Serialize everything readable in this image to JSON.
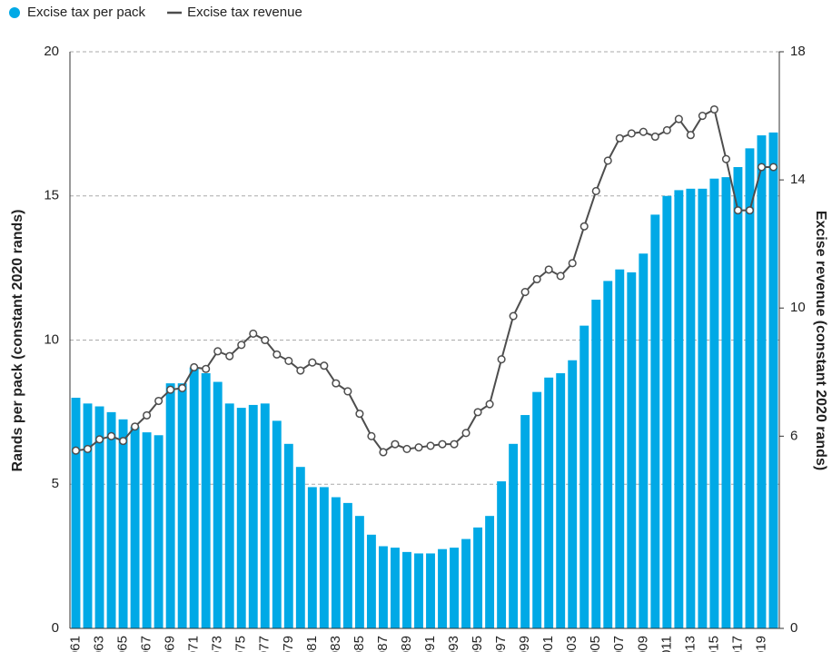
{
  "chart_data": {
    "type": "combo",
    "categories": [
      "1961",
      null,
      "1963",
      null,
      "1965",
      null,
      "1967",
      null,
      "1969",
      null,
      "1971",
      null,
      "1973",
      null,
      "1975",
      null,
      "1977",
      null,
      "1979",
      null,
      "1981",
      null,
      "1983",
      null,
      "1985",
      null,
      "1987",
      null,
      "1989",
      null,
      "1991",
      null,
      "1993",
      null,
      "1995",
      null,
      "1997",
      null,
      "1999",
      null,
      "2001",
      null,
      "2003",
      null,
      "2005",
      null,
      "2007",
      null,
      "2009",
      null,
      "2011",
      null,
      "2013",
      null,
      "2015",
      null,
      "2017",
      null,
      "2019",
      null
    ],
    "series": [
      {
        "name": "Excise tax per pack",
        "type": "bar",
        "color": "#00a9e6",
        "values": [
          8.0,
          7.8,
          7.7,
          7.5,
          7.25,
          7.0,
          6.8,
          6.7,
          8.5,
          8.5,
          9.05,
          8.85,
          8.55,
          7.8,
          7.65,
          7.75,
          7.8,
          7.2,
          6.4,
          5.6,
          4.9,
          4.9,
          4.55,
          4.35,
          3.9,
          3.25,
          2.85,
          2.8,
          2.65,
          2.6,
          2.6,
          2.75,
          2.8,
          3.1,
          3.5,
          3.9,
          5.1,
          6.4,
          7.4,
          8.2,
          8.7,
          8.85,
          9.3,
          10.5,
          11.4,
          12.05,
          12.45,
          12.35,
          13.0,
          14.35,
          15.0,
          15.2,
          15.25,
          15.25,
          15.6,
          15.65,
          16.0,
          16.65,
          17.1,
          17.2
        ]
      },
      {
        "name": "Excise tax revenue",
        "type": "line",
        "axis": "y2",
        "color": "#4d4d4d",
        "values": [
          5.55,
          5.6,
          5.9,
          6.0,
          5.85,
          6.3,
          6.65,
          7.1,
          7.45,
          7.5,
          8.15,
          8.1,
          8.65,
          8.5,
          8.85,
          9.2,
          9.0,
          8.55,
          8.35,
          8.05,
          8.3,
          8.2,
          7.65,
          7.4,
          6.7,
          6.0,
          5.5,
          5.75,
          5.6,
          5.65,
          5.7,
          5.75,
          5.75,
          6.1,
          6.75,
          7.0,
          8.4,
          9.75,
          10.5,
          10.9,
          11.2,
          11.0,
          11.4,
          12.55,
          13.65,
          14.6,
          15.3,
          15.45,
          15.5,
          15.35,
          15.55,
          15.9,
          15.4,
          16.0,
          16.2,
          14.65,
          13.05,
          13.05,
          14.4,
          14.4
        ]
      }
    ],
    "ylabel": "Rands per pack (constant 2020 rands)",
    "y2label": "Excise revenue (constant 2020 rands)",
    "ylim": [
      0,
      20
    ],
    "yticks": [
      0,
      5,
      10,
      15,
      20
    ],
    "y2lim": [
      0,
      18
    ],
    "y2ticks": [
      0,
      6,
      10,
      14,
      18
    ],
    "grid": true,
    "legend": "top-left"
  }
}
